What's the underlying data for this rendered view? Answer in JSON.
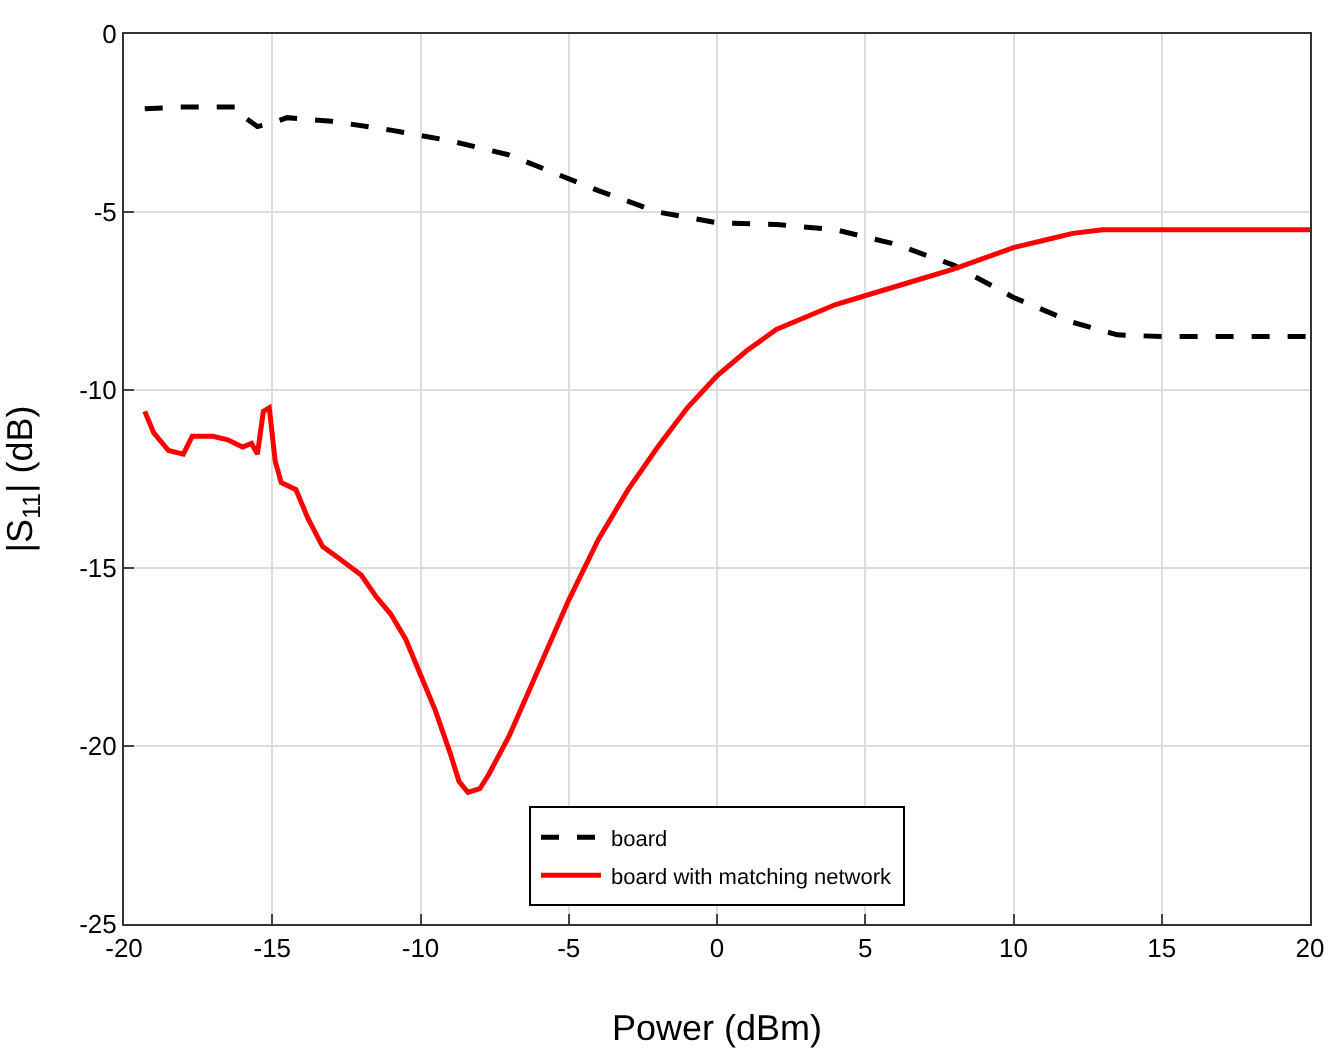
{
  "chart_data": {
    "type": "line",
    "xlabel": "Power (dBm)",
    "ylabel": "|S$_{11}$| (dB)",
    "xlim": [
      -20,
      20
    ],
    "ylim": [
      -25,
      0
    ],
    "xticks": [
      -20,
      -15,
      -10,
      -5,
      0,
      5,
      10,
      15,
      20
    ],
    "yticks": [
      -25,
      -20,
      -15,
      -10,
      -5,
      0
    ],
    "grid": true,
    "legend": "bottom",
    "marker": "none",
    "series": [
      {
        "name": "board",
        "color": "#000000",
        "line_style": "dashed",
        "x": [
          -19.3,
          -18,
          -16.2,
          -16,
          -15.5,
          -15,
          -14.5,
          -13,
          -11,
          -9,
          -7,
          -5.5,
          -4,
          -2,
          0,
          2,
          4,
          6,
          8,
          10,
          12,
          13.5,
          15,
          20
        ],
        "values": [
          -2.1,
          -2.05,
          -2.05,
          -2.3,
          -2.6,
          -2.5,
          -2.35,
          -2.45,
          -2.7,
          -3.0,
          -3.4,
          -3.9,
          -4.4,
          -5.0,
          -5.3,
          -5.35,
          -5.5,
          -5.9,
          -6.5,
          -7.4,
          -8.1,
          -8.45,
          -8.5,
          -8.5
        ]
      },
      {
        "name": "board with matching network",
        "color": "#ff0000",
        "line_style": "solid",
        "x": [
          -19.3,
          -19,
          -18.5,
          -18,
          -17.7,
          -17,
          -16.5,
          -16,
          -15.7,
          -15.5,
          -15.3,
          -15.1,
          -14.9,
          -14.7,
          -14.2,
          -13.8,
          -13.3,
          -12.8,
          -12,
          -11.5,
          -11,
          -10.5,
          -10,
          -9.5,
          -9,
          -8.7,
          -8.4,
          -8,
          -7.7,
          -7,
          -6,
          -5,
          -4,
          -3,
          -2,
          -1,
          0,
          1,
          2,
          4,
          6,
          8,
          10,
          11,
          12,
          13,
          20
        ],
        "values": [
          -10.6,
          -11.2,
          -11.7,
          -11.8,
          -11.3,
          -11.3,
          -11.4,
          -11.6,
          -11.5,
          -11.8,
          -10.6,
          -10.5,
          -12.0,
          -12.6,
          -12.8,
          -13.6,
          -14.4,
          -14.7,
          -15.2,
          -15.8,
          -16.3,
          -17.0,
          -18.0,
          -19.0,
          -20.2,
          -21.0,
          -21.3,
          -21.2,
          -20.8,
          -19.7,
          -17.8,
          -15.9,
          -14.2,
          -12.8,
          -11.6,
          -10.5,
          -9.6,
          -8.9,
          -8.3,
          -7.6,
          -7.1,
          -6.6,
          -6.0,
          -5.8,
          -5.6,
          -5.5,
          -5.5
        ]
      }
    ]
  }
}
